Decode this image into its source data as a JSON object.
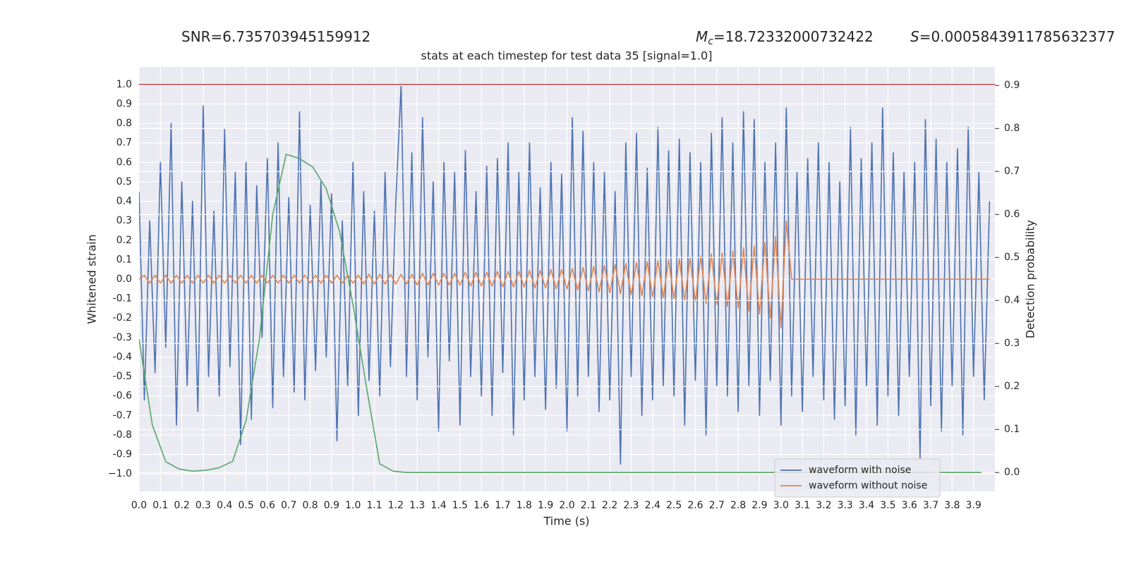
{
  "chart_data": {
    "type": "line",
    "title": "stats at each timestep for test data 35 [signal=1.0]",
    "annotations": [
      {
        "text": "SNR=6.735703945159912"
      },
      {
        "symbol": "M",
        "subscript": "c",
        "text": "=18.72332000732422"
      },
      {
        "symbol": "S",
        "text": "=0.0005843911785632377"
      }
    ],
    "x_label": "Time (s)",
    "y_label": "Whitened strain",
    "y2_label": "Detection probability",
    "xlim": [
      0,
      4.0
    ],
    "ylim": [
      -1.09,
      1.09
    ],
    "y2lim": [
      -0.044,
      0.943
    ],
    "xticks": [
      {
        "value": 0,
        "label": "0.0"
      },
      0.1,
      0.2,
      0.3,
      0.4,
      0.5,
      0.6,
      0.7,
      0.8,
      0.9,
      {
        "value": 1,
        "label": "1.0"
      },
      1.1,
      1.2,
      1.3,
      1.4,
      1.5,
      1.6,
      1.7,
      1.8,
      1.9,
      {
        "value": 2,
        "label": "2.0"
      },
      2.1,
      2.2,
      2.3,
      2.4,
      2.5,
      2.6,
      2.7,
      2.8,
      2.9,
      {
        "value": 3,
        "label": "3.0"
      },
      3.1,
      3.2,
      3.3,
      3.4,
      3.5,
      3.6,
      3.7,
      3.8,
      3.9
    ],
    "yticks": [
      {
        "value": -1,
        "label": "−1.0"
      },
      -0.9,
      -0.8,
      -0.7,
      -0.6,
      -0.5,
      -0.4,
      -0.3,
      -0.2,
      -0.1,
      {
        "value": 0,
        "label": "0.0"
      },
      0.1,
      0.2,
      0.3,
      0.4,
      0.5,
      0.6,
      0.7,
      0.8,
      0.9,
      {
        "value": 1,
        "label": "1.0"
      }
    ],
    "y2ticks": [
      {
        "value": 0,
        "label": "0.0"
      },
      0.1,
      0.2,
      0.3,
      0.4,
      0.5,
      0.6,
      0.7,
      0.8,
      0.9
    ],
    "grid": true,
    "legend": "lower right",
    "hline": {
      "value": 1.0,
      "color": "#c44e52"
    },
    "x": [
      0,
      0.025,
      0.05,
      0.075,
      0.1,
      0.125,
      0.15,
      0.175,
      0.2,
      0.225,
      0.25,
      0.275,
      0.3,
      0.325,
      0.35,
      0.375,
      0.4,
      0.425,
      0.45,
      0.475,
      0.5,
      0.525,
      0.55,
      0.575,
      0.6,
      0.625,
      0.65,
      0.675,
      0.7,
      0.725,
      0.75,
      0.775,
      0.8,
      0.825,
      0.85,
      0.875,
      0.9,
      0.925,
      0.95,
      0.975,
      1,
      1.025,
      1.05,
      1.075,
      1.1,
      1.125,
      1.15,
      1.175,
      1.2,
      1.225,
      1.25,
      1.275,
      1.3,
      1.325,
      1.35,
      1.375,
      1.4,
      1.425,
      1.45,
      1.475,
      1.5,
      1.525,
      1.55,
      1.575,
      1.6,
      1.625,
      1.65,
      1.675,
      1.7,
      1.725,
      1.75,
      1.775,
      1.8,
      1.825,
      1.85,
      1.875,
      1.9,
      1.925,
      1.95,
      1.975,
      2,
      2.025,
      2.05,
      2.075,
      2.1,
      2.125,
      2.15,
      2.175,
      2.2,
      2.225,
      2.25,
      2.275,
      2.3,
      2.325,
      2.35,
      2.375,
      2.4,
      2.425,
      2.45,
      2.475,
      2.5,
      2.525,
      2.55,
      2.575,
      2.6,
      2.625,
      2.65,
      2.675,
      2.7,
      2.725,
      2.75,
      2.775,
      2.8,
      2.825,
      2.85,
      2.875,
      2.9,
      2.925,
      2.95,
      2.975,
      3,
      3.025,
      3.05,
      3.075,
      3.1,
      3.125,
      3.15,
      3.175,
      3.2,
      3.225,
      3.25,
      3.275,
      3.3,
      3.325,
      3.35,
      3.375,
      3.4,
      3.425,
      3.45,
      3.475,
      3.5,
      3.525,
      3.55,
      3.575,
      3.6,
      3.625,
      3.65,
      3.675,
      3.7,
      3.725,
      3.75,
      3.775,
      3.8,
      3.825,
      3.85,
      3.875,
      3.9,
      3.925,
      3.95,
      3.975
    ],
    "series": [
      {
        "name": "waveform with noise",
        "color": "#4c72b0",
        "values": [
          0.45,
          -0.62,
          0.3,
          -0.48,
          0.6,
          -0.35,
          0.8,
          -0.75,
          0.5,
          -0.55,
          0.4,
          -0.68,
          0.89,
          -0.5,
          0.35,
          -0.6,
          0.77,
          -0.45,
          0.55,
          -0.85,
          0.6,
          -0.72,
          0.48,
          -0.3,
          0.62,
          -0.66,
          0.7,
          -0.5,
          0.42,
          -0.58,
          0.86,
          -0.62,
          0.38,
          -0.47,
          0.5,
          -0.4,
          0.44,
          -0.83,
          0.3,
          -0.55,
          0.6,
          -0.7,
          0.45,
          -0.52,
          0.35,
          -0.6,
          0.55,
          -0.45,
          0.4,
          1.0,
          -0.5,
          0.65,
          -0.62,
          0.83,
          -0.4,
          0.5,
          -0.78,
          0.6,
          -0.42,
          0.55,
          -0.75,
          0.66,
          -0.5,
          0.45,
          -0.6,
          0.58,
          -0.7,
          0.62,
          -0.48,
          0.7,
          -0.8,
          0.55,
          -0.62,
          0.7,
          -0.5,
          0.47,
          -0.67,
          0.6,
          -0.56,
          0.54,
          -0.78,
          0.83,
          -0.6,
          0.76,
          -0.5,
          0.6,
          -0.68,
          0.55,
          -0.62,
          0.45,
          -0.95,
          0.7,
          -0.5,
          0.75,
          -0.7,
          0.57,
          -0.62,
          0.78,
          -0.55,
          0.66,
          -0.6,
          0.72,
          -0.75,
          0.65,
          -0.52,
          0.6,
          -0.8,
          0.75,
          -0.55,
          0.83,
          -0.6,
          0.7,
          -0.68,
          0.86,
          -0.55,
          0.82,
          -0.7,
          0.6,
          -0.52,
          0.7,
          -0.75,
          0.88,
          -0.6,
          0.55,
          -0.68,
          0.62,
          -0.5,
          0.7,
          -0.62,
          0.6,
          -0.72,
          0.5,
          -0.65,
          0.78,
          -0.8,
          0.62,
          -0.55,
          0.7,
          -0.75,
          0.88,
          -0.6,
          0.65,
          -0.7,
          0.55,
          -0.5,
          0.6,
          -0.92,
          0.82,
          -0.65,
          0.72,
          -0.78,
          0.6,
          -0.55,
          0.67,
          -0.8,
          0.78,
          -0.5,
          0.55,
          -0.62,
          0.4
        ]
      },
      {
        "name": "waveform without noise",
        "color": "#dd8452",
        "values": [
          0,
          0.02,
          -0.02,
          0.02,
          -0.02,
          0.02,
          -0.02,
          0.02,
          -0.02,
          0.02,
          -0.02,
          0.02,
          -0.02,
          0.02,
          -0.02,
          0.02,
          -0.02,
          0.02,
          -0.02,
          0.02,
          -0.02,
          0.02,
          -0.02,
          0.02,
          -0.02,
          0.02,
          -0.02,
          0.02,
          -0.02,
          0.02,
          -0.02,
          0.02,
          -0.02,
          0.02,
          -0.02,
          0.02,
          -0.02,
          0.02,
          -0.02,
          0.02,
          -0.02,
          0.02,
          -0.025,
          0.025,
          -0.025,
          0.025,
          -0.025,
          0.025,
          -0.025,
          0.025,
          -0.025,
          0.025,
          -0.03,
          0.03,
          -0.03,
          0.03,
          -0.03,
          0.03,
          -0.03,
          0.03,
          -0.03,
          0.035,
          -0.035,
          0.035,
          -0.035,
          0.035,
          -0.035,
          0.04,
          -0.04,
          0.04,
          -0.04,
          0.04,
          -0.04,
          0.045,
          -0.045,
          0.045,
          -0.045,
          0.05,
          -0.05,
          0.05,
          -0.05,
          0.055,
          -0.055,
          0.06,
          -0.06,
          0.065,
          -0.065,
          0.07,
          -0.07,
          0.075,
          -0.075,
          0.08,
          -0.08,
          0.085,
          -0.085,
          0.09,
          -0.09,
          0.095,
          -0.095,
          0.1,
          -0.1,
          0.105,
          -0.11,
          0.11,
          -0.115,
          0.12,
          -0.125,
          0.13,
          -0.13,
          0.135,
          -0.14,
          0.145,
          -0.15,
          0.16,
          -0.165,
          0.17,
          -0.18,
          0.19,
          -0.2,
          0.22,
          -0.25,
          0.3,
          0,
          0,
          0,
          0,
          0,
          0,
          0,
          0,
          0,
          0,
          0,
          0,
          0,
          0,
          0,
          0,
          0,
          0,
          0,
          0,
          0,
          0,
          0,
          0,
          0,
          0,
          0,
          0,
          0,
          0,
          0,
          0,
          0,
          0,
          0,
          0,
          0,
          0
        ]
      },
      {
        "color": "#55a868",
        "axis": "y2",
        "x": [
          0,
          0.0625,
          0.125,
          0.1875,
          0.25,
          0.3125,
          0.375,
          0.4375,
          0.5,
          0.5625,
          0.625,
          0.6875,
          0.75,
          0.8125,
          0.875,
          0.9375,
          1,
          1.0625,
          1.125,
          1.1875,
          1.25,
          1.3125,
          1.375,
          1.4375,
          1.5,
          1.5625,
          1.625,
          1.6875,
          1.75,
          1.8125,
          1.875,
          1.9375,
          2,
          2.0625,
          2.125,
          2.1875,
          2.25,
          2.3125,
          2.375,
          2.4375,
          2.5,
          2.5625,
          2.625,
          2.6875,
          2.75,
          2.8125,
          2.875,
          2.9375,
          3,
          3.0625,
          3.125,
          3.1875,
          3.25,
          3.3125,
          3.375,
          3.4375,
          3.5,
          3.5625,
          3.625,
          3.6875,
          3.75,
          3.8125,
          3.875,
          3.9375
        ],
        "values": [
          0.31,
          0.11,
          0.025,
          0.008,
          0.003,
          0.005,
          0.011,
          0.026,
          0.12,
          0.31,
          0.6,
          0.74,
          0.73,
          0.71,
          0.66,
          0.56,
          0.39,
          0.2,
          0.02,
          0.003,
          0,
          0,
          0,
          0,
          0,
          0,
          0,
          0,
          0,
          0,
          0,
          0,
          0,
          0,
          0,
          0,
          0,
          0,
          0,
          0,
          0,
          0,
          0,
          0,
          0,
          0,
          0,
          0,
          0,
          0,
          0,
          0,
          0,
          0,
          0,
          0,
          0,
          0,
          0,
          0,
          0,
          0,
          0,
          0
        ]
      }
    ]
  }
}
